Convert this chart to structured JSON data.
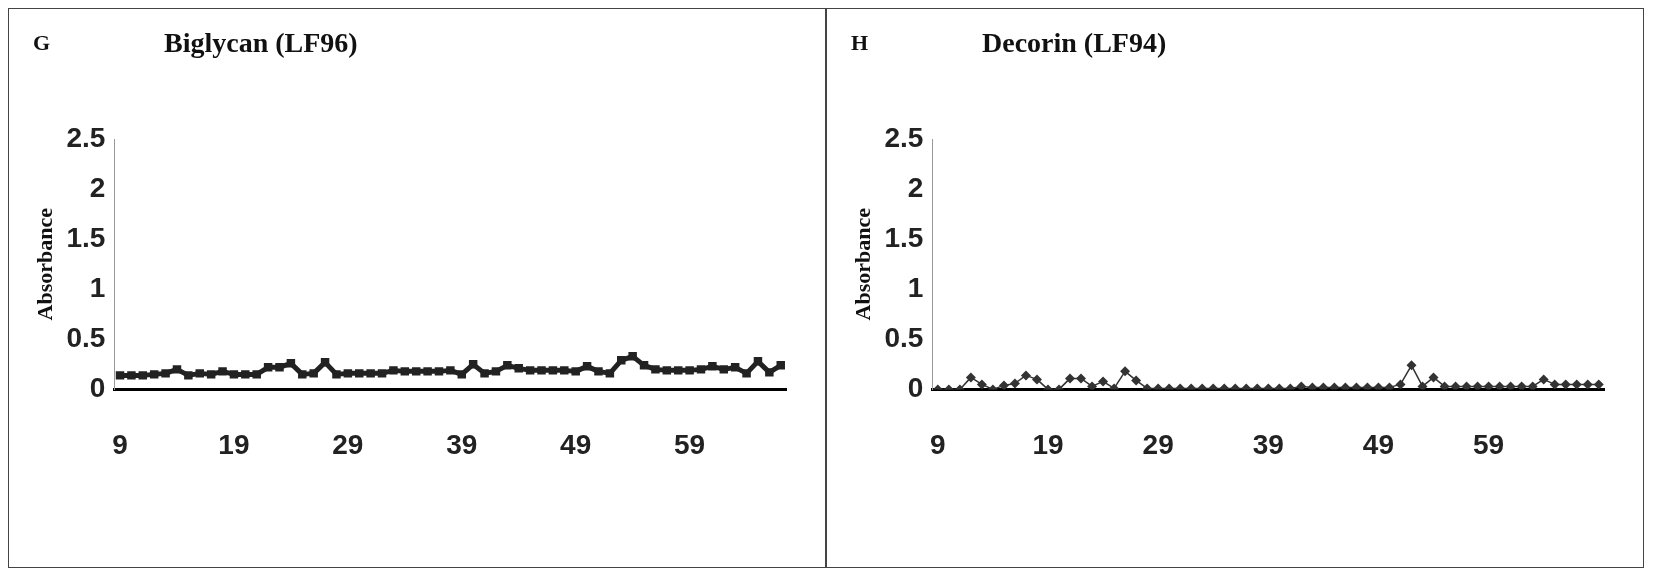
{
  "chart_data": [
    {
      "type": "line",
      "title": "Biglycan (LF96)",
      "ylabel": "Absorbance",
      "annotations": [
        "G"
      ],
      "categories": [
        "9",
        null,
        null,
        null,
        null,
        null,
        null,
        null,
        null,
        null,
        "19",
        null,
        null,
        null,
        null,
        null,
        null,
        null,
        null,
        null,
        "29",
        null,
        null,
        null,
        null,
        null,
        null,
        null,
        null,
        null,
        "39",
        null,
        null,
        null,
        null,
        null,
        null,
        null,
        null,
        null,
        "49",
        null,
        null,
        null,
        null,
        null,
        null,
        null,
        null,
        null,
        "59",
        null,
        null,
        null,
        null,
        null,
        null,
        null,
        null
      ],
      "series": [
        {
          "color": "#222222",
          "values": [
            0.14,
            0.14,
            0.14,
            0.15,
            0.16,
            0.2,
            0.14,
            0.16,
            0.15,
            0.18,
            0.15,
            0.15,
            0.15,
            0.22,
            0.22,
            0.26,
            0.15,
            0.16,
            0.27,
            0.15,
            0.16,
            0.16,
            0.16,
            0.16,
            0.19,
            0.18,
            0.18,
            0.18,
            0.18,
            0.19,
            0.15,
            0.25,
            0.16,
            0.18,
            0.24,
            0.21,
            0.19,
            0.19,
            0.19,
            0.19,
            0.18,
            0.23,
            0.18,
            0.16,
            0.29,
            0.33,
            0.24,
            0.2,
            0.19,
            0.19,
            0.19,
            0.2,
            0.23,
            0.2,
            0.22,
            0.16,
            0.28,
            0.17,
            0.24
          ]
        }
      ],
      "ylim": [
        0,
        2.5
      ],
      "yticks": [
        0,
        0.5,
        1,
        1.5,
        2,
        2.5
      ],
      "grid": false,
      "legend": false,
      "marker": "square",
      "line_style": "solid"
    },
    {
      "type": "line",
      "title": "Decorin (LF94)",
      "ylabel": "Absorbance",
      "annotations": [
        "H"
      ],
      "categories": [
        "9",
        null,
        null,
        null,
        null,
        null,
        null,
        null,
        null,
        null,
        "19",
        null,
        null,
        null,
        null,
        null,
        null,
        null,
        null,
        null,
        "29",
        null,
        null,
        null,
        null,
        null,
        null,
        null,
        null,
        null,
        "39",
        null,
        null,
        null,
        null,
        null,
        null,
        null,
        null,
        null,
        "49",
        null,
        null,
        null,
        null,
        null,
        null,
        null,
        null,
        null,
        "59",
        null,
        null,
        null,
        null,
        null,
        null,
        null,
        null,
        null,
        null
      ],
      "series": [
        {
          "color": "#333333",
          "values": [
            0,
            0,
            0,
            0.12,
            0.05,
            0,
            0.04,
            0.06,
            0.14,
            0.1,
            0,
            0,
            0.11,
            0.11,
            0.03,
            0.08,
            0.01,
            0.18,
            0.09,
            0.01,
            0.01,
            0.01,
            0.01,
            0.01,
            0.01,
            0.01,
            0.01,
            0.01,
            0.01,
            0.01,
            0.01,
            0.01,
            0.01,
            0.03,
            0.02,
            0.02,
            0.02,
            0.02,
            0.02,
            0.02,
            0.02,
            0.02,
            0.05,
            0.24,
            0.03,
            0.12,
            0.03,
            0.03,
            0.03,
            0.03,
            0.03,
            0.03,
            0.03,
            0.03,
            0.03,
            0.1,
            0.05,
            0.05,
            0.05,
            0.05,
            0.05
          ]
        }
      ],
      "ylim": [
        0,
        2.5
      ],
      "yticks": [
        0,
        0.5,
        1,
        1.5,
        2,
        2.5
      ],
      "grid": false,
      "legend": false,
      "marker": "diamond",
      "line_style": "solid"
    }
  ]
}
